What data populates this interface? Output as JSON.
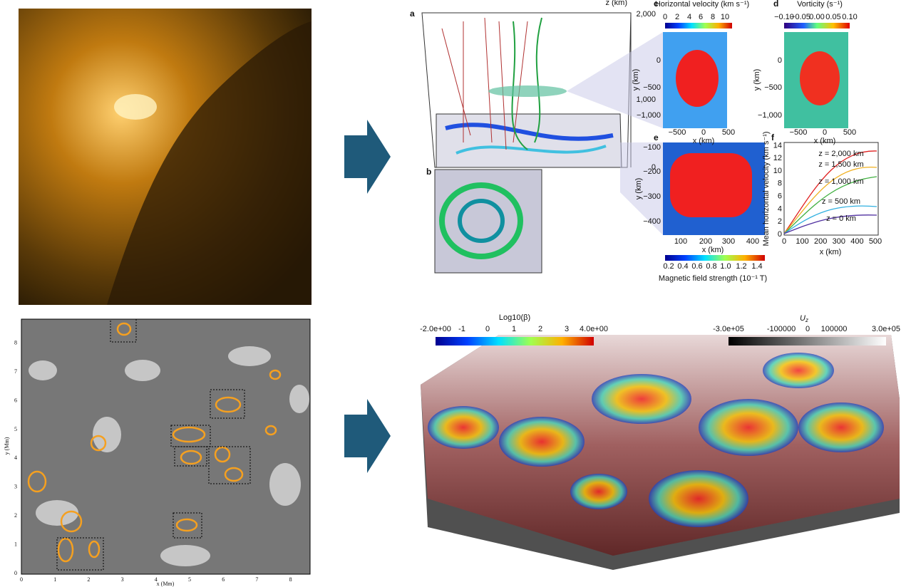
{
  "velocity_map": {
    "x_label": "x (Mm)",
    "y_label": "y (Mm)",
    "x_ticks": [
      "0",
      "1",
      "2",
      "3",
      "4",
      "5",
      "6",
      "7",
      "8"
    ],
    "y_ticks": [
      "0",
      "1",
      "2",
      "3",
      "4",
      "5",
      "6",
      "7",
      "8"
    ]
  },
  "simulation_figure": {
    "panel_labels": [
      "a",
      "b",
      "c",
      "d",
      "e",
      "f"
    ],
    "z_axis": {
      "label": "z (km)",
      "ticks": [
        "2,000",
        "1,000",
        "0"
      ]
    },
    "panel_c": {
      "title": "Horizontal velocity (km s⁻¹)",
      "colorbar_ticks": [
        "0",
        "2",
        "4",
        "6",
        "8",
        "10"
      ],
      "y_label": "y (km)",
      "y_ticks": [
        "0",
        "−500",
        "−1,000"
      ],
      "x_label": "x (km)",
      "x_ticks": [
        "−500",
        "0",
        "500"
      ]
    },
    "panel_d": {
      "title": "Vorticity (s⁻¹)",
      "colorbar_ticks": [
        "−0.10",
        "−0.05",
        "0.00",
        "0.05",
        "0.10"
      ],
      "y_label": "y (km)",
      "y_ticks": [
        "0",
        "−500",
        "−1,000"
      ],
      "x_label": "x (km)",
      "x_ticks": [
        "−500",
        "0",
        "500"
      ]
    },
    "panel_e": {
      "y_label": "y (km)",
      "y_ticks": [
        "−100",
        "−200",
        "−300",
        "−400"
      ],
      "x_label": "x (km)",
      "x_ticks": [
        "100",
        "200",
        "300",
        "400"
      ],
      "colorbar_title": "Magnetic field strength (10⁻¹ T)",
      "colorbar_ticks": [
        "0.2",
        "0.4",
        "0.6",
        "0.8",
        "1.0",
        "1.2",
        "1.4"
      ]
    },
    "panel_f": {
      "y_label": "Mean horizontal velocity (km s⁻¹)",
      "y_ticks": [
        "0",
        "2",
        "4",
        "6",
        "8",
        "10",
        "12",
        "14"
      ],
      "x_label": "x (km)",
      "x_ticks": [
        "0",
        "100",
        "200",
        "300",
        "400",
        "500"
      ],
      "curve_labels": [
        "z = 2,000 km",
        "z = 1,500 km",
        "z = 1,000 km",
        "z = 500 km",
        "z = 0 km"
      ]
    }
  },
  "render_3d": {
    "beta_colorbar": {
      "title": "Log10(β)",
      "ticks": [
        "-2.0e+00",
        "-1",
        "0",
        "1",
        "2",
        "3",
        "4.0e+00"
      ]
    },
    "uz_colorbar": {
      "title": "U",
      "subscript": "z",
      "ticks": [
        "-3.0e+05",
        "-100000",
        "0",
        "100000",
        "3.0e+05"
      ]
    }
  }
}
